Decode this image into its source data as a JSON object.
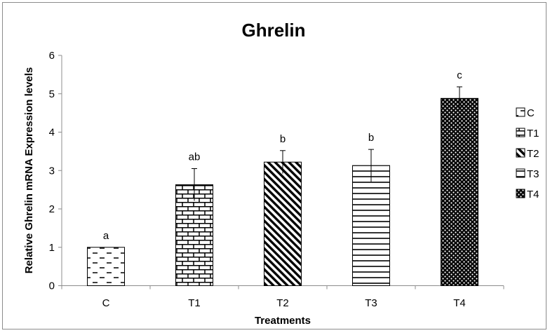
{
  "chart_data": {
    "type": "bar",
    "title": "Ghrelin",
    "xlabel": "Treatments",
    "ylabel": "Relative Ghrelin mRNA Expression levels",
    "ylim": [
      0,
      6
    ],
    "yticks": [
      "0",
      "1",
      "2",
      "3",
      "4",
      "5",
      "6"
    ],
    "categories": [
      "C",
      "T1",
      "T2",
      "T3",
      "T4"
    ],
    "values": [
      1.0,
      2.63,
      3.22,
      3.13,
      4.88
    ],
    "errors": [
      0,
      0.42,
      0.3,
      0.42,
      0.3
    ],
    "significance_labels": [
      "a",
      "ab",
      "b",
      "b",
      "c"
    ],
    "patterns": [
      "dashes",
      "brick",
      "diagonal",
      "horizontal-lines",
      "dots"
    ],
    "legend": {
      "position": "right",
      "entries": [
        "C",
        "T1",
        "T2",
        "T3",
        "T4"
      ]
    },
    "grid": false
  }
}
